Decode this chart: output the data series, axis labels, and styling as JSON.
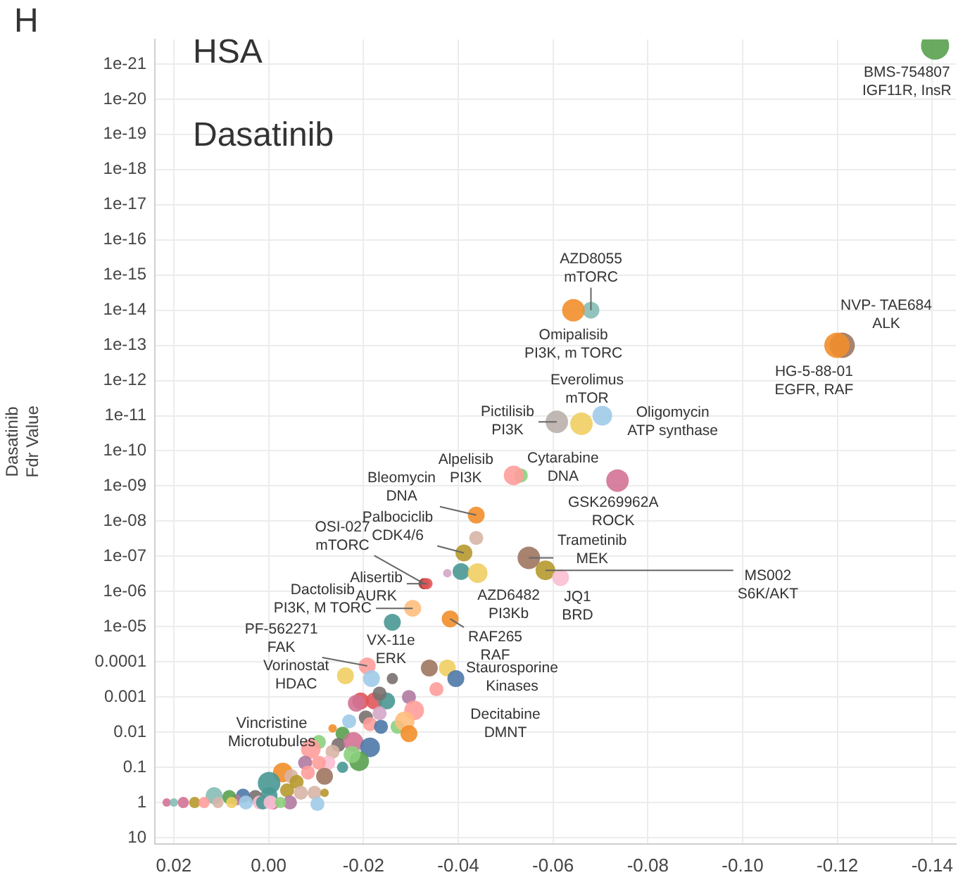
{
  "chart_data": {
    "type": "bubble",
    "ylabel": "Dasatinib\nFdr Value",
    "xlim": [
      0.024,
      -0.145
    ],
    "xticks": [
      0.02,
      {
        "value": 0,
        "label": "0.00"
      },
      -0.02,
      -0.04,
      -0.06,
      -0.08,
      {
        "value": -0.1,
        "label": "-0.10"
      },
      -0.12,
      -0.14
    ],
    "ylim": [
      15,
      2e-22
    ],
    "yticks": [
      10,
      1,
      0.1,
      0.01,
      0.001,
      0.0001,
      {
        "value": 1e-05,
        "label": "1e-05"
      },
      {
        "value": 1e-06,
        "label": "1e-06"
      },
      {
        "value": 1e-07,
        "label": "1e-07"
      },
      {
        "value": 1e-08,
        "label": "1e-08"
      },
      {
        "value": 1e-09,
        "label": "1e-09"
      },
      1e-10,
      1e-11,
      1e-12,
      1e-13,
      1e-14,
      1e-15,
      1e-16,
      1e-17,
      1e-18,
      1e-19,
      1e-20,
      1e-21
    ],
    "log": "y",
    "grid": true,
    "marker": "circle",
    "x": [
      -0.1406,
      -0.068,
      -0.0643,
      -0.121,
      -0.1199,
      -0.0608,
      -0.0704,
      -0.066,
      -0.0532,
      -0.0517,
      -0.0736,
      -0.0438,
      -0.0438,
      -0.0412,
      -0.0549,
      -0.0584,
      -0.0616,
      -0.0406,
      -0.0441,
      -0.0377,
      -0.0328,
      -0.0334,
      -0.0304,
      -0.0261,
      -0.0383,
      -0.0208,
      -0.0217,
      -0.0162,
      -0.0261,
      -0.0339,
      -0.0377,
      -0.0395,
      -0.0354,
      -0.0296,
      -0.0307,
      -0.0194,
      -0.0185,
      -0.0223,
      -0.0249,
      -0.0234,
      -0.0205,
      -0.017,
      -0.0234,
      -0.0214,
      -0.0237,
      -0.0272,
      -0.0287,
      -0.0296,
      -0.0135,
      -0.0156,
      -0.0106,
      -0.0089,
      -0.0147,
      -0.0179,
      -0.0214,
      -0.0191,
      -0.0176,
      -0.0135,
      -0.0126,
      -0.0156,
      -0.0077,
      -0.0106,
      -0.003,
      -0.0001,
      -0.0048,
      -0.0001,
      -0.0039,
      -0.0059,
      -0.0083,
      -0.0118,
      -0.0068,
      -0.0097,
      -0.0118,
      -0.0103,
      -0.0045,
      -0.001,
      0.0028,
      0.0054,
      0.0069,
      0.0115,
      0.0083,
      0.0215,
      0.02,
      0.018,
      0.0156,
      0.0136,
      0.0107,
      0.0078,
      0.0048,
      0.0019,
      0.0012,
      -0.0004,
      -0.0025
    ],
    "values": [
      3e-22,
      1e-14,
      1e-14,
      1e-13,
      1e-13,
      1.5e-11,
      1e-11,
      1.7e-11,
      5e-10,
      5e-10,
      7e-10,
      6.7e-09,
      3e-08,
      8e-08,
      1.1e-07,
      2.5e-07,
      4e-07,
      2.7e-07,
      3e-07,
      3e-07,
      6e-07,
      6e-07,
      3e-06,
      7.5e-06,
      6e-06,
      0.00013,
      0.0003,
      0.00025,
      0.0003,
      0.00015,
      0.00015,
      0.0003,
      0.0006,
      0.001,
      0.0024,
      0.0013,
      0.0015,
      0.0013,
      0.0013,
      0.0008,
      0.0038,
      0.0049,
      0.0029,
      0.0059,
      0.007,
      0.007,
      0.0049,
      0.011,
      0.0078,
      0.011,
      0.019,
      0.03,
      0.023,
      0.019,
      0.027,
      0.067,
      0.043,
      0.036,
      0.074,
      0.1,
      0.074,
      0.074,
      0.14,
      0.28,
      0.18,
      0.64,
      0.45,
      0.26,
      0.14,
      0.18,
      0.53,
      0.53,
      0.53,
      1.1,
      1,
      1.1,
      0.7,
      0.64,
      0.84,
      0.64,
      0.7,
      1,
      1,
      1,
      1,
      1,
      1,
      1,
      1,
      1,
      1,
      1,
      1
    ],
    "sizes": [
      1,
      0.36,
      0.64,
      0.81,
      0.81,
      0.64,
      0.49,
      0.64,
      0.25,
      0.49,
      0.64,
      0.36,
      0.25,
      0.36,
      0.64,
      0.49,
      0.36,
      0.36,
      0.49,
      0.09,
      0.16,
      0.16,
      0.36,
      0.36,
      0.36,
      0.36,
      0.36,
      0.36,
      0.16,
      0.36,
      0.36,
      0.36,
      0.25,
      0.25,
      0.49,
      0.36,
      0.36,
      0.36,
      0.36,
      0.25,
      0.25,
      0.25,
      0.25,
      0.25,
      0.25,
      0.25,
      0.49,
      0.36,
      0.09,
      0.25,
      0.25,
      0.49,
      0.25,
      0.49,
      0.49,
      0.49,
      0.36,
      0.25,
      0.25,
      0.16,
      0.25,
      0.25,
      0.49,
      0.64,
      0.25,
      0.36,
      0.25,
      0.25,
      0.25,
      0.36,
      0.25,
      0.25,
      0.09,
      0.25,
      0.25,
      0.16,
      0.25,
      0.25,
      0.16,
      0.36,
      0.25,
      0.09,
      0.09,
      0.16,
      0.16,
      0.16,
      0.16,
      0.16,
      0.25,
      0.25,
      0.25,
      0.25,
      0.16
    ],
    "colors": [
      "#59a14f",
      "#86bcb6",
      "#f28e2b",
      "#9d7660",
      "#f28e2b",
      "#bab0ac",
      "#a0cbe8",
      "#f1ce63",
      "#8cd17d",
      "#ff9d9a",
      "#d37295",
      "#f28e2b",
      "#d7b5a6",
      "#b6992d",
      "#9d7660",
      "#b6992d",
      "#fabfd2",
      "#499894",
      "#f1ce63",
      "#d4a6c8",
      "#a8322d",
      "#e15759",
      "#ffbe7d",
      "#499894",
      "#f28e2b",
      "#ff9d9a",
      "#a0cbe8",
      "#f1ce63",
      "#79706e",
      "#9d7660",
      "#f1ce63",
      "#4e79a7",
      "#ff9d9a",
      "#b07aa1",
      "#ff9d9a",
      "#e15759",
      "#d37295",
      "#e15759",
      "#499894",
      "#79706e",
      "#79706e",
      "#a0cbe8",
      "#d4a6c8",
      "#ff9d9a",
      "#4e79a7",
      "#8cd17d",
      "#ffbe7d",
      "#f28e2b",
      "#f28e2b",
      "#59a14f",
      "#8cd17d",
      "#ff9d9a",
      "#79706e",
      "#d37295",
      "#4e79a7",
      "#59a14f",
      "#8cd17d",
      "#d7b5a6",
      "#fabfd2",
      "#499894",
      "#b07aa1",
      "#ff9d9a",
      "#f28e2b",
      "#499894",
      "#d7b5a6",
      "#499894",
      "#b6992d",
      "#b6992d",
      "#ff9d9a",
      "#9d7660",
      "#d7b5a6",
      "#d7b5a6",
      "#b6992d",
      "#a0cbe8",
      "#b07aa1",
      "#d37295",
      "#79706e",
      "#4e79a7",
      "#b07aa1",
      "#86bcb6",
      "#59a14f",
      "#d37295",
      "#86bcb6",
      "#d37295",
      "#b6992d",
      "#ff9d9a",
      "#d7b5a6",
      "#f1ce63",
      "#a0cbe8",
      "#fabfd2",
      "#499894",
      "#fabfd2",
      "#8cd17d"
    ],
    "annotations": [
      "H",
      "HSA",
      "Dasatinib",
      "Vincristine\nMicrotubules",
      {
        "text": "BMS-754807\nIGF11R, InsR",
        "x": -0.1406,
        "y": 3e-22
      },
      {
        "text": "AZD8055\nmTORC",
        "x": -0.068,
        "y": 1e-14
      },
      {
        "text": "Omipalisib\nPI3K, m TORC",
        "x": -0.0643,
        "y": 1e-14
      },
      {
        "text": "NVP- TAE684\nALK",
        "x": -0.1199,
        "y": 1e-13
      },
      {
        "text": "HG-5-88-01\nEGFR, RAF",
        "x": -0.121,
        "y": 1e-13
      },
      {
        "text": "Everolimus\nmTOR",
        "x": -0.066,
        "y": 1.7e-11
      },
      {
        "text": "Pictilisib\nPI3K",
        "x": -0.0608,
        "y": 1.5e-11
      },
      {
        "text": "Oligomycin\nATP synthase",
        "x": -0.0704,
        "y": 1e-11
      },
      {
        "text": "Alpelisib\nPI3K",
        "x": -0.0517,
        "y": 5e-10
      },
      {
        "text": "Cytarabine\nDNA",
        "x": -0.0532,
        "y": 5e-10
      },
      {
        "text": "GSK269962A\nROCK",
        "x": -0.0736,
        "y": 7e-10
      },
      {
        "text": "Bleomycin\nDNA",
        "x": -0.0438,
        "y": 6.7e-09
      },
      {
        "text": "Palbociclib\nCDK4/6",
        "x": -0.0412,
        "y": 8e-08
      },
      {
        "text": "OSI-027\nmTORC",
        "x": -0.0328,
        "y": 6e-07
      },
      {
        "text": "Alisertib\nAURK",
        "x": -0.0334,
        "y": 6e-07
      },
      {
        "text": "Dactolisib\nPI3K, M TORC",
        "x": -0.0304,
        "y": 3e-06
      },
      {
        "text": "AZD6482\nPI3Kb",
        "x": -0.0441,
        "y": 3e-07
      },
      {
        "text": "VX-11e\nERK",
        "x": -0.0261,
        "y": 7.5e-06
      },
      {
        "text": "RAF265\nRAF",
        "x": -0.0383,
        "y": 6e-06
      },
      {
        "text": "Trametinib\nMEK",
        "x": -0.0549,
        "y": 1.1e-07
      },
      {
        "text": "MS002\nS6K/AKT",
        "x": -0.0584,
        "y": 2.5e-07
      },
      {
        "text": "JQ1\nBRD",
        "x": -0.0616,
        "y": 4e-07
      },
      {
        "text": "PF-562271\nFAK",
        "x": -0.0208,
        "y": 0.00013
      },
      {
        "text": "Vorinostat\nHDAC",
        "x": -0.0162,
        "y": 0.00025
      },
      {
        "text": "Staurosporine\nKinases",
        "x": -0.0377,
        "y": 0.00015
      },
      {
        "text": "Decitabine\nDMNT",
        "x": -0.0354,
        "y": 0.0006
      }
    ]
  }
}
